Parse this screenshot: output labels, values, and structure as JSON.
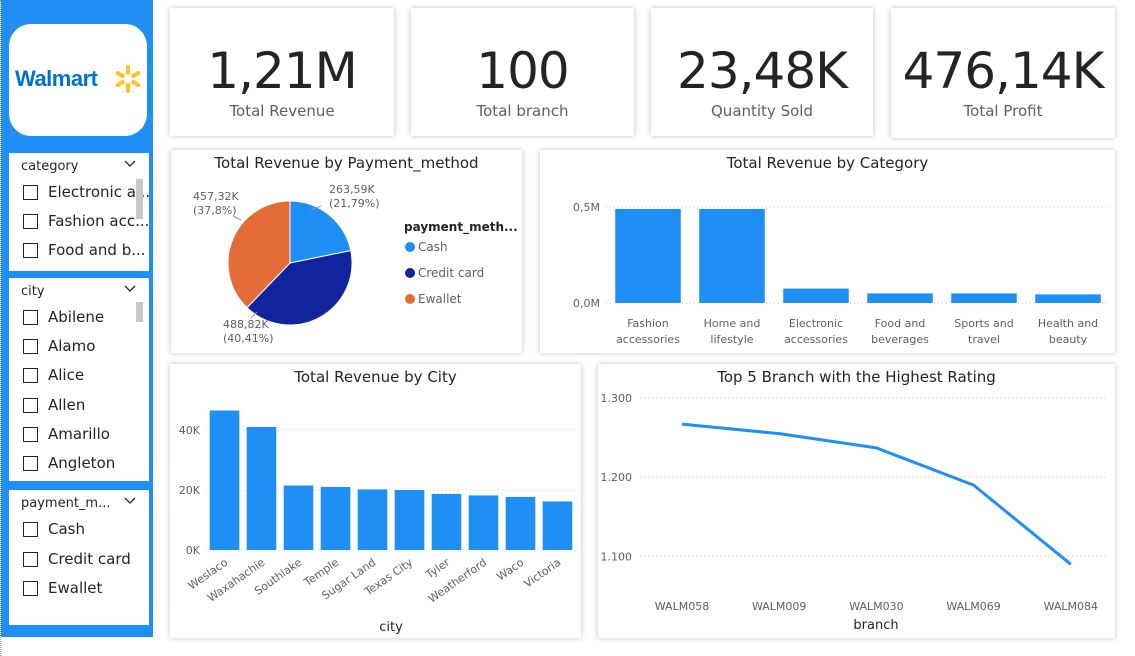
{
  "brand": {
    "logo_text": "Walmart",
    "accent": "#1f8ff5",
    "bar_color": "#1f8ff5"
  },
  "slicers": {
    "category": {
      "title": "category",
      "items": [
        "Electronic a...",
        "Fashion acc...",
        "Food and b..."
      ]
    },
    "city": {
      "title": "city",
      "items": [
        "Abilene",
        "Alamo",
        "Alice",
        "Allen",
        "Amarillo",
        "Angleton"
      ]
    },
    "payment": {
      "title": "payment_m...",
      "items": [
        "Cash",
        "Credit card",
        "Ewallet"
      ]
    }
  },
  "kpis": [
    {
      "value": "1,21M",
      "label": "Total Revenue"
    },
    {
      "value": "100",
      "label": "Total branch"
    },
    {
      "value": "23,48K",
      "label": "Quantity Sold"
    },
    {
      "value": "476,14K",
      "label": "Total Profit"
    }
  ],
  "chart_data": [
    {
      "id": "payment",
      "type": "pie",
      "title": "Total Revenue by Payment_method",
      "legend_title": "payment_meth...",
      "slices": [
        {
          "name": "Cash",
          "value": 263.59,
          "pct": 21.79,
          "label": "263,59K",
          "pct_label": "(21,79%)",
          "color": "#1f8ff5"
        },
        {
          "name": "Credit card",
          "value": 488.82,
          "pct": 40.41,
          "label": "488,82K",
          "pct_label": "(40,41%)",
          "color": "#12239e"
        },
        {
          "name": "Ewallet",
          "value": 457.32,
          "pct": 37.8,
          "label": "457,32K",
          "pct_label": "(37,8%)",
          "color": "#e66c37"
        }
      ]
    },
    {
      "id": "category",
      "type": "bar",
      "title": "Total Revenue by Category",
      "categories": [
        "Fashion accessories",
        "Home and lifestyle",
        "Electronic accessories",
        "Food and beverages",
        "Sports and travel",
        "Health and beauty"
      ],
      "category_lines": [
        [
          "Fashion",
          "accessories"
        ],
        [
          "Home and",
          "lifestyle"
        ],
        [
          "Electronic",
          "accessories"
        ],
        [
          "Food and",
          "beverages"
        ],
        [
          "Sports and",
          "travel"
        ],
        [
          "Health and",
          "beauty"
        ]
      ],
      "values": [
        0.49,
        0.49,
        0.075,
        0.05,
        0.05,
        0.045
      ],
      "ylim": [
        0,
        0.5
      ],
      "yticks": [
        {
          "v": 0,
          "label": "0,0M"
        },
        {
          "v": 0.5,
          "label": "0,5M"
        }
      ]
    },
    {
      "id": "city",
      "type": "bar",
      "title": "Total Revenue by City",
      "xlabel": "city",
      "categories": [
        "Weslaco",
        "Waxahachie",
        "Southlake",
        "Temple",
        "Sugar Land",
        "Texas City",
        "Tyler",
        "Weatherford",
        "Waco",
        "Victoria"
      ],
      "values": [
        46500,
        41000,
        21500,
        21000,
        20200,
        20000,
        18700,
        18200,
        17700,
        16200
      ],
      "ylim": [
        0,
        47000
      ],
      "yticks": [
        {
          "v": 0,
          "label": "0K"
        },
        {
          "v": 20000,
          "label": "20K"
        },
        {
          "v": 40000,
          "label": "40K"
        }
      ]
    },
    {
      "id": "branch",
      "type": "line",
      "title": "Top 5 Branch with the Highest Rating",
      "xlabel": "branch",
      "categories": [
        "WALM058",
        "WALM009",
        "WALM030",
        "WALM069",
        "WALM084"
      ],
      "values": [
        1.267,
        1.255,
        1.237,
        1.19,
        1.09
      ],
      "ylim": [
        1.05,
        1.3
      ],
      "yticks": [
        {
          "v": 1.1,
          "label": "1.100"
        },
        {
          "v": 1.2,
          "label": "1.200"
        },
        {
          "v": 1.3,
          "label": "1.300"
        }
      ]
    }
  ]
}
